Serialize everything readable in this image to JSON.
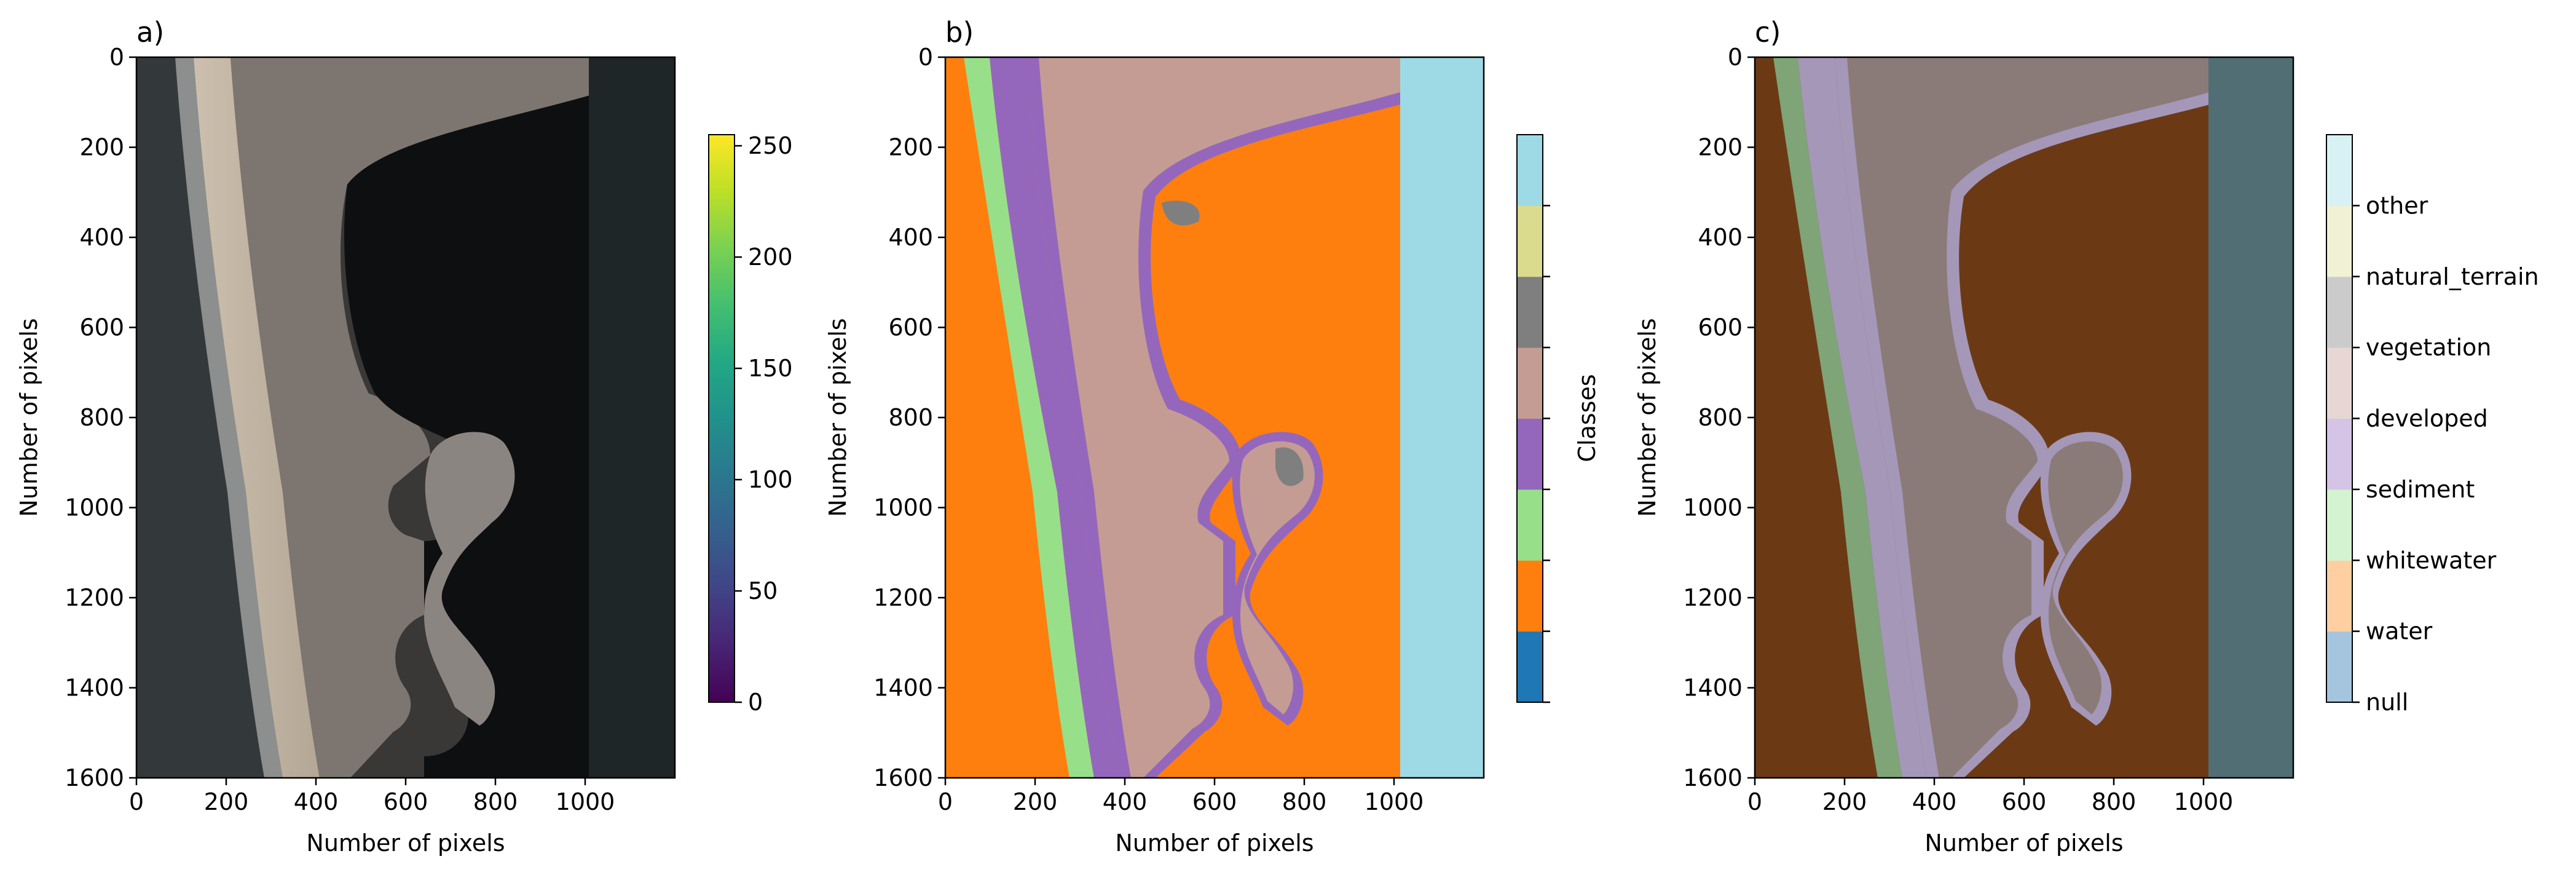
{
  "chart_data": [
    {
      "type": "heatmap",
      "panel_label": "a)",
      "image": "RGB satellite imagery of coastline with beach, urban grid, harbor and pier; right strip no-data",
      "xlabel": "Number of pixels",
      "ylabel": "Number of pixels",
      "xlim": [
        0,
        1200
      ],
      "ylim": [
        1600,
        0
      ],
      "xticks": [
        0,
        200,
        400,
        600,
        800,
        1000
      ],
      "yticks": [
        0,
        200,
        400,
        600,
        800,
        1000,
        1200,
        1400,
        1600
      ],
      "colorbar": {
        "colormap": "viridis",
        "range": [
          0,
          255
        ],
        "ticks": [
          0,
          50,
          100,
          150,
          200,
          250
        ]
      }
    },
    {
      "type": "heatmap",
      "panel_label": "b)",
      "image": "label map of land-cover classes",
      "xlabel": "Number of pixels",
      "ylabel": "Number of pixels",
      "xlim": [
        0,
        1200
      ],
      "ylim": [
        1600,
        0
      ],
      "xticks": [
        0,
        200,
        400,
        600,
        800,
        1000
      ],
      "yticks": [
        0,
        200,
        400,
        600,
        800,
        1000,
        1200,
        1400,
        1600
      ],
      "colorbar": {
        "label": "Classes",
        "colors": [
          "#1f77b4",
          "#ff7f0e",
          "#98df8a",
          "#9467bd",
          "#c49c94",
          "#7f7f7f",
          "#dbdb8d",
          "#9edae5"
        ]
      }
    },
    {
      "type": "heatmap",
      "panel_label": "c)",
      "image": "satellite imagery overlaid with semi-transparent class labels",
      "xlabel": "Number of pixels",
      "ylabel": "Number of pixels",
      "xlim": [
        0,
        1200
      ],
      "ylim": [
        1600,
        0
      ],
      "xticks": [
        0,
        200,
        400,
        600,
        800,
        1000
      ],
      "yticks": [
        0,
        200,
        400,
        600,
        800,
        1000,
        1200,
        1400,
        1600
      ],
      "colorbar": {
        "classes": [
          "null",
          "water",
          "whitewater",
          "sediment",
          "developed",
          "vegetation",
          "natural_terrain",
          "other"
        ],
        "colors": [
          "#a5c5df",
          "#ffcfa1",
          "#d4f3d0",
          "#d5c4e6",
          "#e7d7d4",
          "#cbcbcb",
          "#f1f1d5",
          "#d8f1f5"
        ]
      }
    }
  ]
}
